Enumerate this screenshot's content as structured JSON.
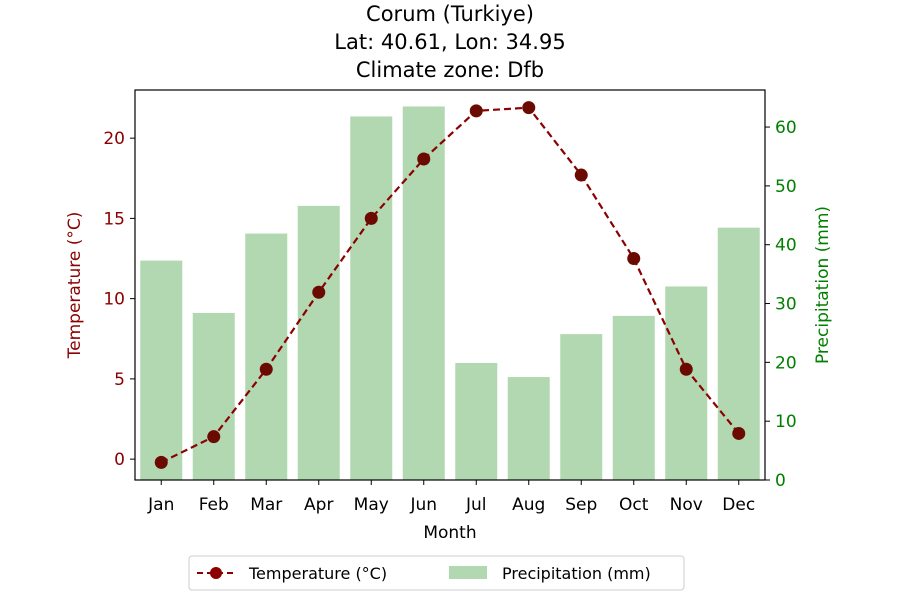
{
  "chart_data": {
    "type": "bar+line",
    "title_lines": [
      "Corum (Turkiye)",
      "Lat: 40.61, Lon: 34.95",
      "Climate zone: Dfb"
    ],
    "categories": [
      "Jan",
      "Feb",
      "Mar",
      "Apr",
      "May",
      "Jun",
      "Jul",
      "Aug",
      "Sep",
      "Oct",
      "Nov",
      "Dec"
    ],
    "xlabel": "Month",
    "y_left": {
      "label": "Temperature (°C)",
      "ylim": [
        -1.3,
        23.0
      ],
      "ticks": [
        0,
        5,
        10,
        15,
        20
      ],
      "color": "#8b0000"
    },
    "y_right": {
      "label": "Precipitation (mm)",
      "ylim": [
        0,
        66.3
      ],
      "ticks": [
        0,
        10,
        20,
        30,
        40,
        50,
        60
      ],
      "color": "#008000"
    },
    "series": [
      {
        "name": "Temperature (°C)",
        "kind": "line",
        "axis": "left",
        "color": "#8b0000",
        "values": [
          -0.2,
          1.4,
          5.6,
          10.4,
          15.0,
          18.7,
          21.7,
          21.9,
          17.7,
          12.5,
          5.6,
          1.6
        ]
      },
      {
        "name": "Precipitation (mm)",
        "kind": "bar",
        "axis": "right",
        "color": "#b2d8b2",
        "values": [
          37.3,
          28.4,
          41.9,
          46.6,
          61.8,
          63.5,
          19.9,
          17.5,
          24.8,
          27.9,
          32.9,
          42.9
        ]
      }
    ],
    "legend_position": "bottom-center",
    "grid": false
  }
}
